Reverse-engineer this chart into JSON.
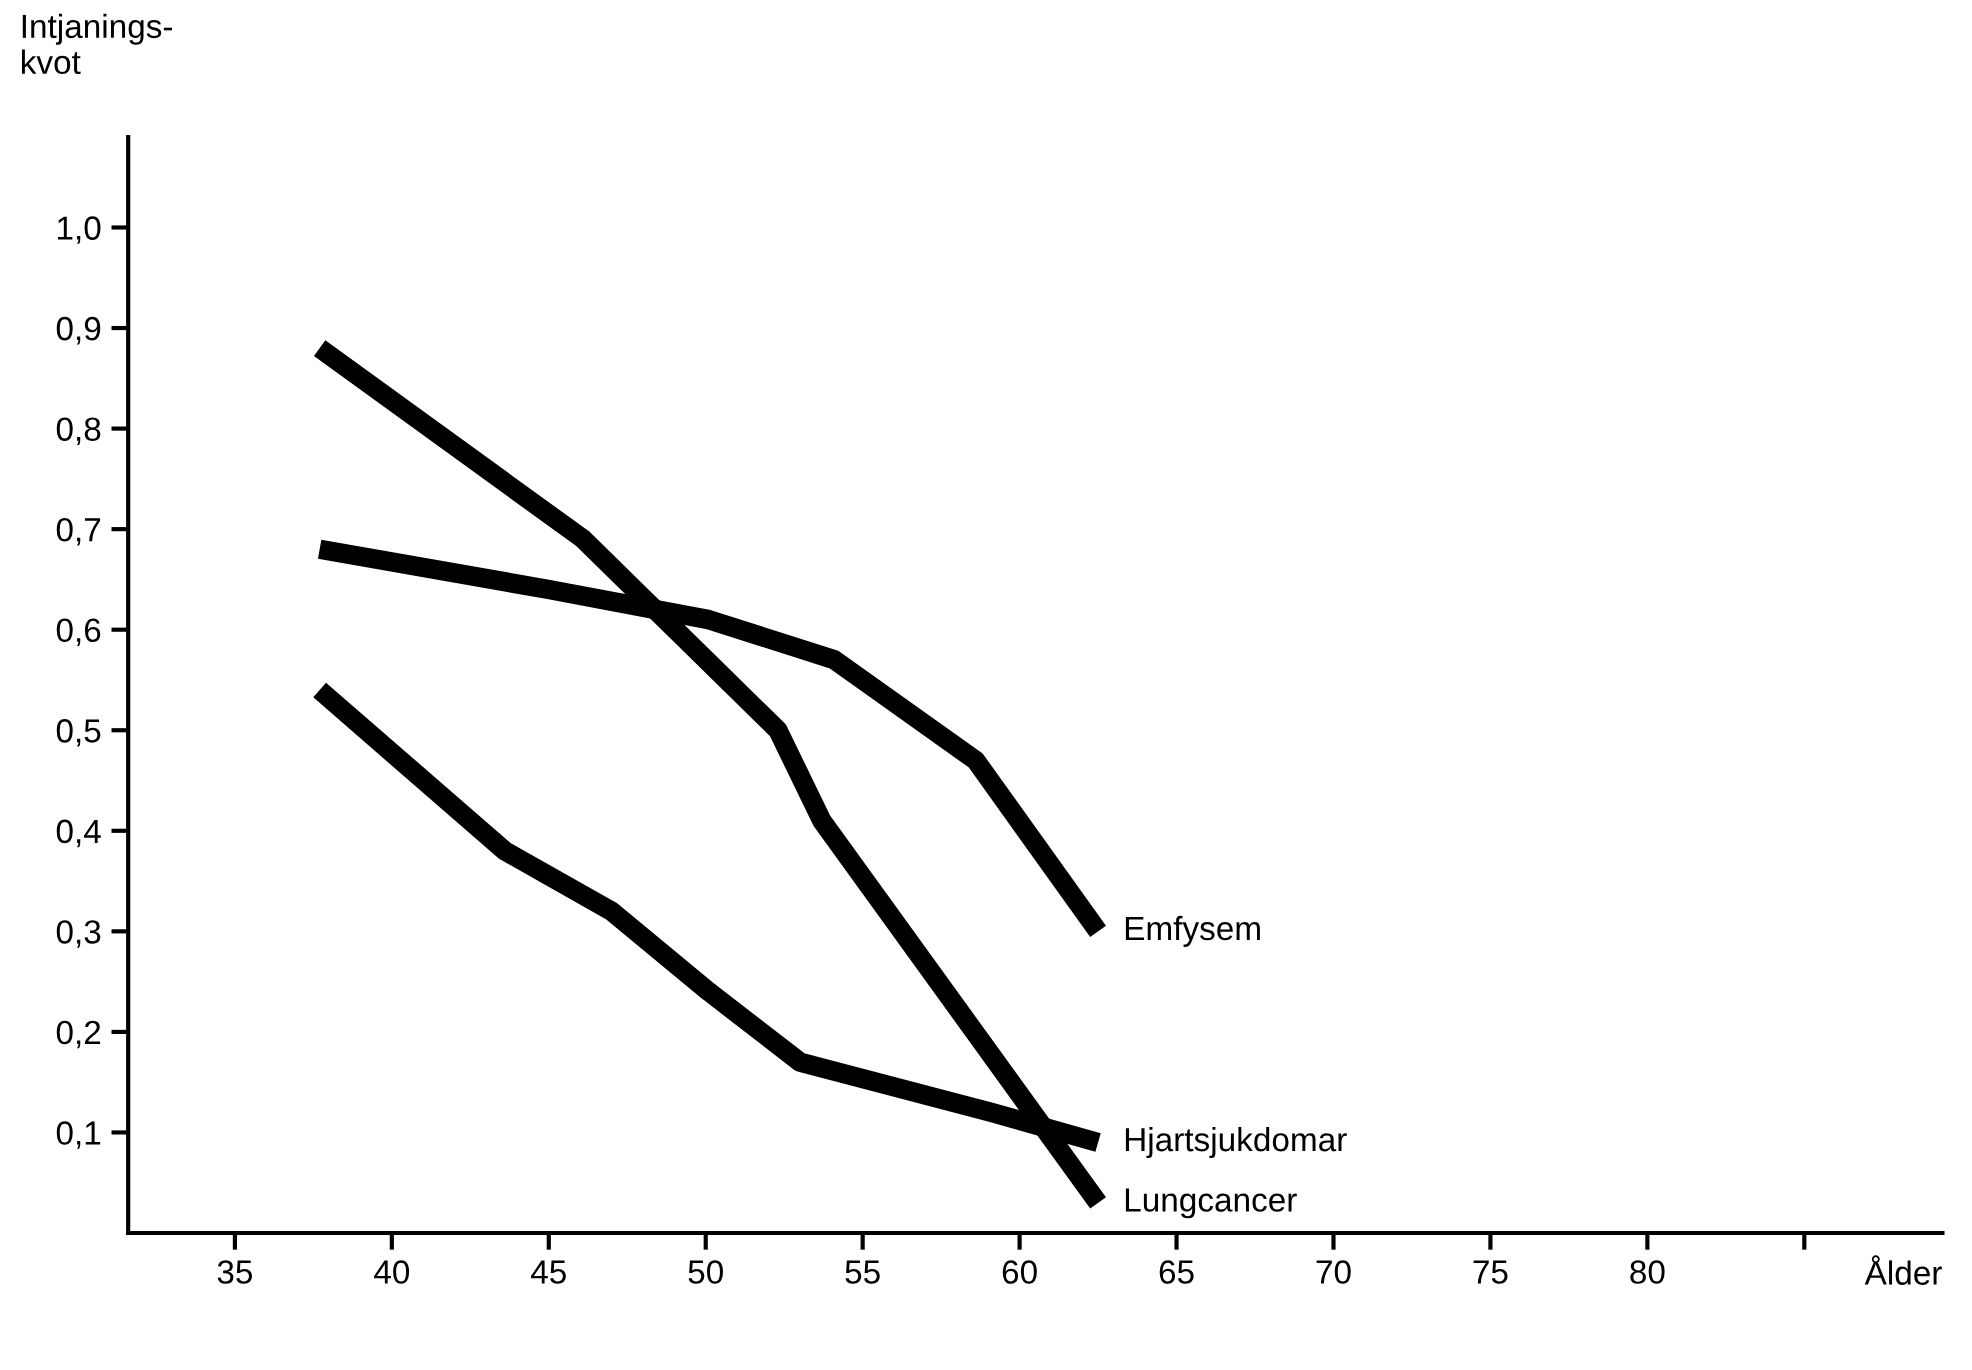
{
  "chart_data": {
    "type": "line",
    "xlabel": "Ålder",
    "ylabel": "Intjanings-\nkvot",
    "xlim": [
      31.6,
      89.4
    ],
    "ylim": [
      0,
      1.09
    ],
    "xticks": [
      35,
      40,
      45,
      50,
      55,
      60,
      65,
      70,
      75,
      80,
      {
        "value": 85,
        "label": null
      }
    ],
    "yticks": [
      {
        "value": 0.1,
        "label": "0,1"
      },
      {
        "value": 0.2,
        "label": "0,2"
      },
      {
        "value": 0.3,
        "label": "0,3"
      },
      {
        "value": 0.4,
        "label": "0,4"
      },
      {
        "value": 0.5,
        "label": "0,5"
      },
      {
        "value": 0.6,
        "label": "0,6"
      },
      {
        "value": 0.7,
        "label": "0,7"
      },
      {
        "value": 0.8,
        "label": "0,8"
      },
      {
        "value": 0.9,
        "label": "0,9"
      },
      {
        "value": 1.0,
        "label": "1,0"
      }
    ],
    "grid": false,
    "legend": false,
    "line_style": "solid",
    "marker": "none",
    "series": [
      {
        "name": "Emfysem",
        "color": "#000000",
        "x": [
          37.7,
          45,
          50.1,
          54.1,
          58.6,
          62.5
        ],
        "values": [
          0.68,
          0.64,
          0.61,
          0.57,
          0.47,
          0.3
        ]
      },
      {
        "name": "Hjartsjukdomar",
        "color": "#000000",
        "x": [
          37.7,
          43.6,
          47.0,
          50.1,
          53.0,
          59.1,
          62.5
        ],
        "values": [
          0.54,
          0.38,
          0.32,
          0.24,
          0.17,
          0.12,
          0.09
        ]
      },
      {
        "name": "Lungcancer",
        "color": "#000000",
        "x": [
          37.7,
          46.1,
          52.3,
          53.7,
          62.5
        ],
        "values": [
          0.88,
          0.69,
          0.5,
          0.41,
          0.03
        ]
      }
    ]
  }
}
